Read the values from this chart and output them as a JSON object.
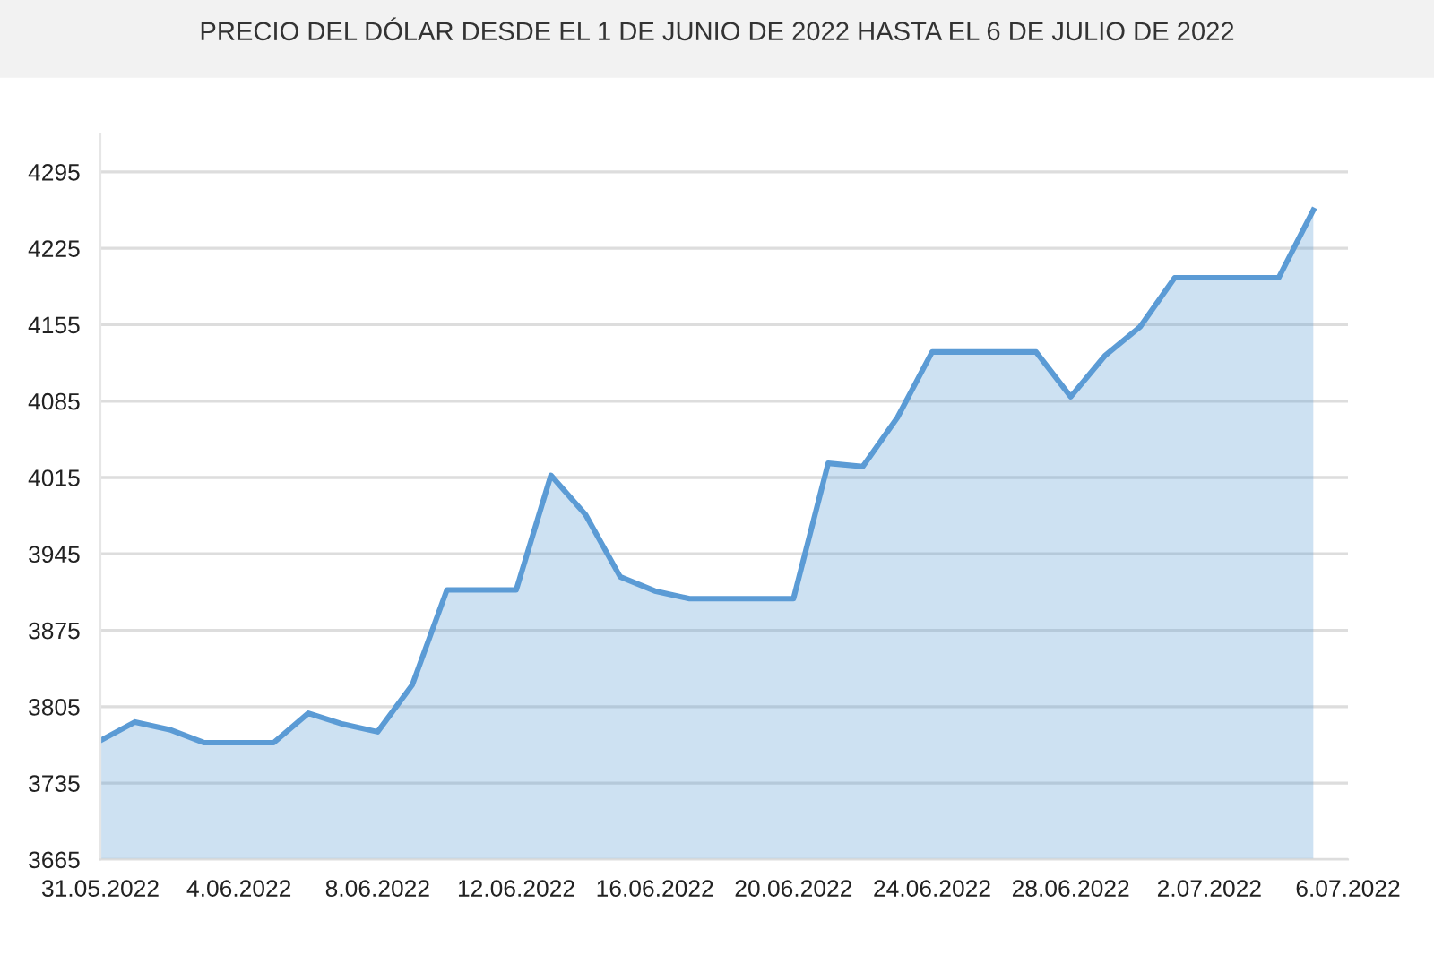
{
  "chart_data": {
    "type": "area",
    "title": "PRECIO DEL DÓLAR DESDE EL 1 DE JUNIO DE 2022 HASTA EL 6 DE JULIO DE 2022",
    "x": [
      "2022-05-31",
      "2022-06-01",
      "2022-06-02",
      "2022-06-03",
      "2022-06-05",
      "2022-06-06",
      "2022-06-07",
      "2022-06-08",
      "2022-06-09",
      "2022-06-10",
      "2022-06-12",
      "2022-06-13",
      "2022-06-14",
      "2022-06-15",
      "2022-06-16",
      "2022-06-17",
      "2022-06-20",
      "2022-06-21",
      "2022-06-22",
      "2022-06-23",
      "2022-06-24",
      "2022-06-27",
      "2022-06-28",
      "2022-06-29",
      "2022-06-30",
      "2022-07-01",
      "2022-07-04",
      "2022-07-05"
    ],
    "series": [
      {
        "color": "#5b9bd5",
        "values": [
          3774,
          3791,
          3784,
          3772,
          3772,
          3799,
          3789,
          3782,
          3825,
          3912,
          3912,
          4017,
          3981,
          3924,
          3911,
          3904,
          3904,
          4028,
          4025,
          4070,
          4130,
          4130,
          4089,
          4127,
          4153,
          4198,
          4198,
          4260
        ]
      }
    ],
    "xlim": [
      "2022-05-31",
      "2022-07-06"
    ],
    "xticks": [
      {
        "value": "2022-05-31",
        "label": "31.05.2022"
      },
      {
        "value": "2022-06-04",
        "label": "4.06.2022"
      },
      {
        "value": "2022-06-08",
        "label": "8.06.2022"
      },
      {
        "value": "2022-06-12",
        "label": "12.06.2022"
      },
      {
        "value": "2022-06-16",
        "label": "16.06.2022"
      },
      {
        "value": "2022-06-20",
        "label": "20.06.2022"
      },
      {
        "value": "2022-06-24",
        "label": "24.06.2022"
      },
      {
        "value": "2022-06-28",
        "label": "28.06.2022"
      },
      {
        "value": "2022-07-02",
        "label": "2.07.2022"
      },
      {
        "value": "2022-07-06",
        "label": "6.07.2022"
      }
    ],
    "ylim": [
      3665,
      4330
    ],
    "yticks": [
      3665,
      3735,
      3805,
      3875,
      3945,
      4015,
      4085,
      4155,
      4225,
      4295
    ],
    "grid": "y",
    "marker": "none",
    "line_style": "solid"
  }
}
